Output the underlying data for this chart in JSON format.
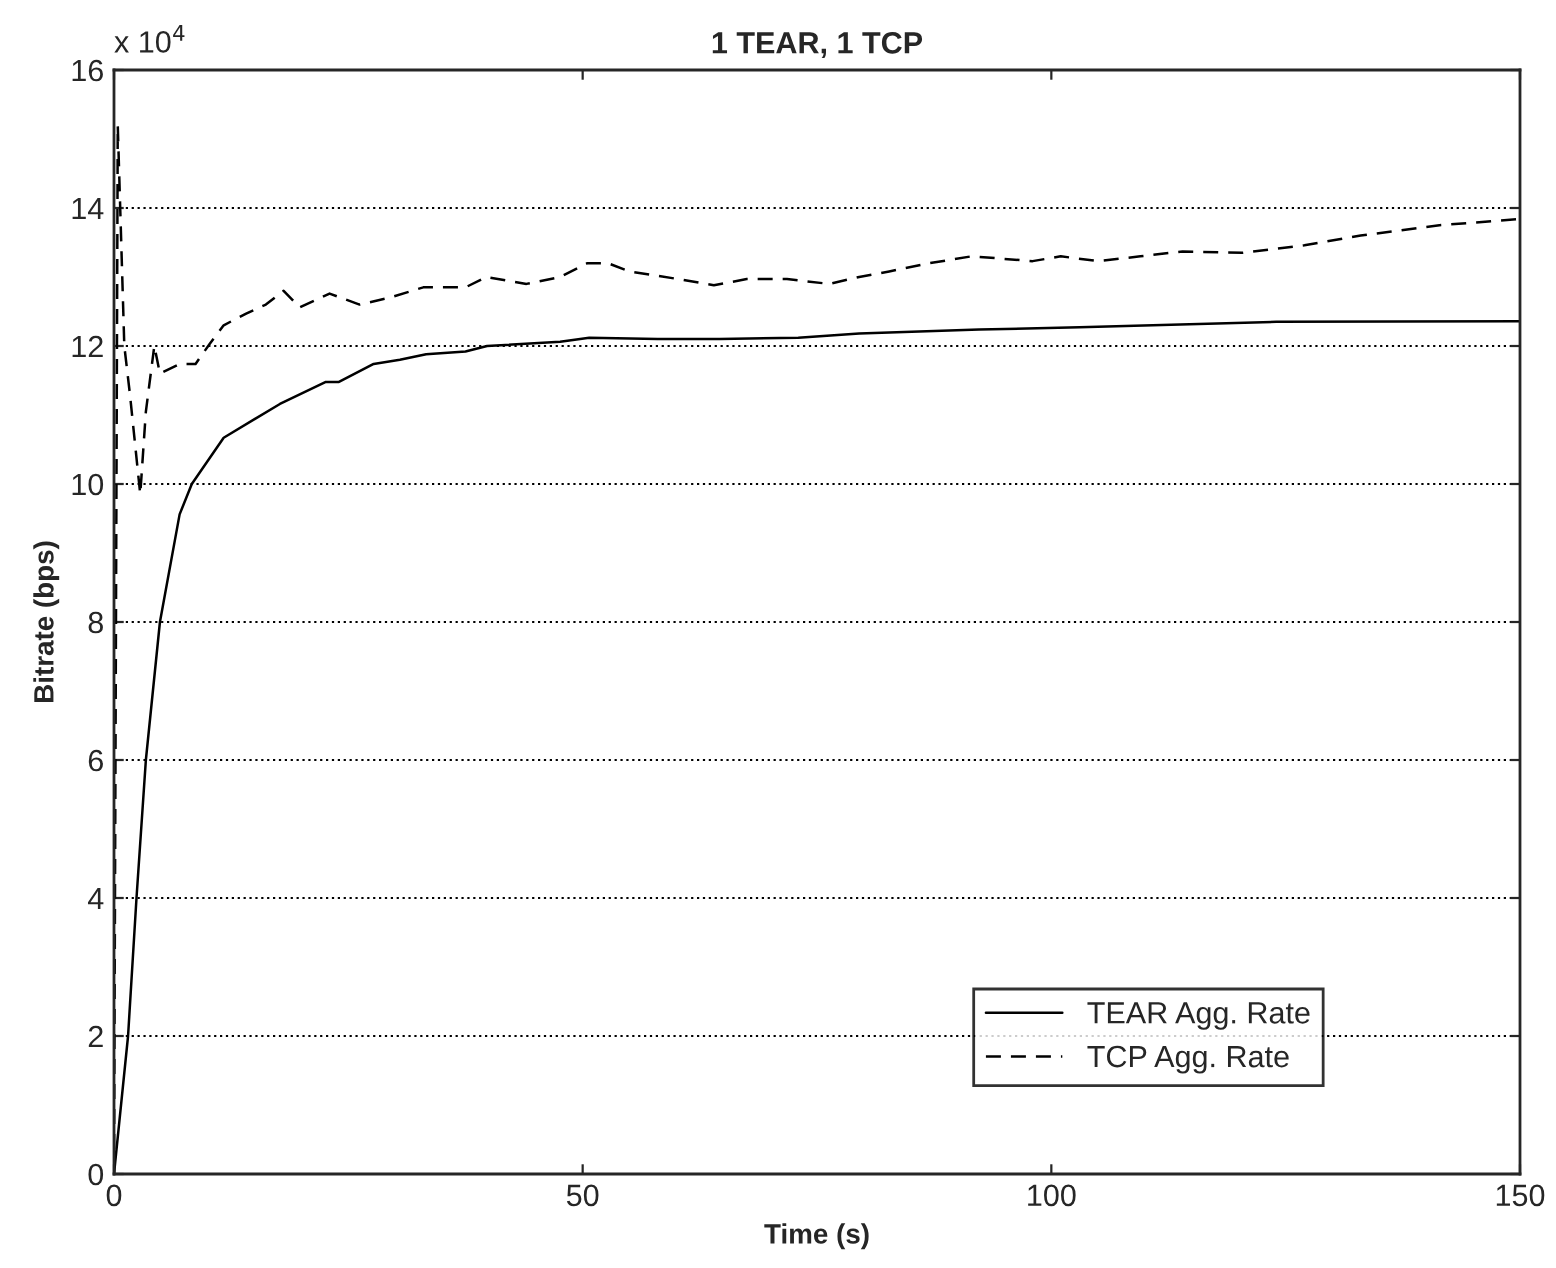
{
  "chart_data": {
    "type": "line",
    "title": "1 TEAR, 1 TCP",
    "xlabel": "Time (s)",
    "ylabel": "Bitrate (bps)",
    "annotations": [
      "x 10$^{4}$"
    ],
    "series": [
      {
        "name": "TEAR Agg. Rate",
        "color": "#000000",
        "line_style": "solid",
        "x": [
          0,
          1.5,
          2.4,
          3.4,
          4.9,
          7,
          8.3,
          11.7,
          17.7,
          22.6,
          24,
          27.7,
          30.5,
          33.3,
          37.5,
          39.8,
          47.6,
          50.7,
          58,
          64.6,
          73,
          79.5,
          92.3,
          103,
          124,
          150
        ],
        "values": [
          0,
          2.0,
          4.0,
          6.0,
          8.0,
          9.56,
          10.0,
          10.67,
          11.16,
          11.48,
          11.48,
          11.74,
          11.8,
          11.88,
          11.92,
          12.0,
          12.06,
          12.12,
          12.1,
          12.1,
          12.12,
          12.18,
          12.24,
          12.27,
          12.35,
          12.36
        ]
      },
      {
        "name": "TCP Agg. Rate",
        "color": "#000000",
        "line_style": "dashed",
        "x": [
          0,
          0.4,
          1.1,
          1.7,
          2.8,
          3.4,
          4.3,
          4.9,
          7,
          8.7,
          10.2,
          11.7,
          14.1,
          16.2,
          18.1,
          19.8,
          23,
          26.2,
          29.4,
          33,
          37.5,
          39.7,
          44,
          47.6,
          50.5,
          52.7,
          55,
          60.2,
          64,
          67.5,
          71.8,
          76.3,
          79.5,
          82.7,
          87,
          91.5,
          98,
          101,
          105,
          109.5,
          114,
          120.4,
          127,
          133,
          141.4,
          150
        ],
        "values": [
          0,
          15.2,
          12.0,
          11.3,
          9.85,
          11.05,
          12.0,
          11.6,
          11.74,
          11.74,
          12.03,
          12.3,
          12.47,
          12.6,
          12.8,
          12.56,
          12.76,
          12.6,
          12.7,
          12.85,
          12.85,
          13.0,
          12.9,
          13.0,
          13.2,
          13.2,
          13.08,
          12.97,
          12.88,
          12.97,
          12.97,
          12.9,
          13.0,
          13.08,
          13.2,
          13.3,
          13.23,
          13.3,
          13.23,
          13.3,
          13.37,
          13.35,
          13.46,
          13.6,
          13.75,
          13.84
        ]
      }
    ],
    "xlim": [
      0,
      150
    ],
    "xticks": [
      0,
      50,
      100,
      150
    ],
    "ylim": [
      0,
      16
    ],
    "yticks": [
      0,
      2,
      4,
      6,
      8,
      10,
      12,
      14,
      16
    ],
    "grid": "y",
    "legend": "bottom right",
    "marker": "none"
  }
}
